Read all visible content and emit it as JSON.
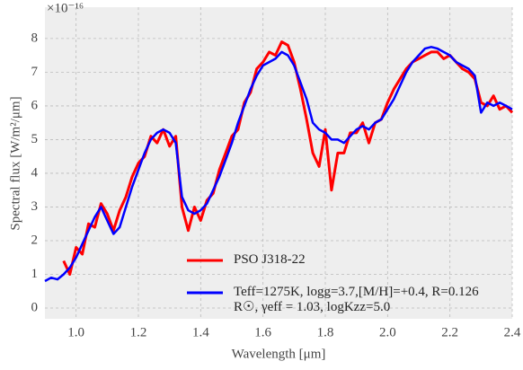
{
  "chart_data": {
    "type": "line",
    "x_label": "Wavelength [μm]",
    "y_label": "Spectral flux [W/m²/μm]",
    "y_offset_label": "×10⁻¹⁶",
    "x": [
      0.9,
      0.92,
      0.94,
      0.96,
      0.98,
      1.0,
      1.02,
      1.04,
      1.06,
      1.08,
      1.1,
      1.12,
      1.14,
      1.16,
      1.18,
      1.2,
      1.22,
      1.24,
      1.26,
      1.28,
      1.3,
      1.32,
      1.34,
      1.36,
      1.38,
      1.4,
      1.42,
      1.44,
      1.46,
      1.48,
      1.5,
      1.52,
      1.54,
      1.56,
      1.58,
      1.6,
      1.62,
      1.64,
      1.66,
      1.68,
      1.7,
      1.72,
      1.74,
      1.76,
      1.78,
      1.8,
      1.82,
      1.84,
      1.86,
      1.88,
      1.9,
      1.92,
      1.94,
      1.96,
      1.98,
      2.0,
      2.02,
      2.04,
      2.06,
      2.08,
      2.1,
      2.12,
      2.14,
      2.16,
      2.18,
      2.2,
      2.22,
      2.24,
      2.26,
      2.28,
      2.3,
      2.32,
      2.34,
      2.36,
      2.38,
      2.4
    ],
    "series": [
      {
        "name": "PSO J318-22",
        "color": "#ff0000",
        "width": 3,
        "values": [
          null,
          null,
          null,
          1.4,
          1.0,
          1.8,
          1.6,
          2.5,
          2.4,
          3.1,
          2.8,
          2.3,
          2.9,
          3.3,
          3.9,
          4.3,
          4.5,
          5.1,
          4.9,
          5.3,
          4.8,
          5.1,
          3.0,
          2.3,
          3.0,
          2.6,
          3.2,
          3.4,
          4.1,
          4.6,
          5.1,
          5.3,
          6.1,
          6.4,
          7.1,
          7.3,
          7.6,
          7.5,
          7.9,
          7.8,
          7.3,
          6.5,
          5.6,
          4.6,
          4.2,
          5.3,
          3.5,
          4.6,
          4.6,
          5.2,
          5.2,
          5.5,
          4.9,
          5.5,
          5.6,
          6.1,
          6.5,
          6.8,
          7.1,
          7.3,
          7.4,
          7.5,
          7.6,
          7.6,
          7.4,
          7.5,
          7.3,
          7.1,
          7.0,
          6.8,
          6.1,
          6.0,
          6.3,
          5.9,
          6.0,
          5.8
        ]
      },
      {
        "name": "Teff=1275K, logg=3.7,[M/H]=+0.4, R=0.126 R☉, γeff = 1.03, logKzz=5.0",
        "color": "#0000ff",
        "width": 2.5,
        "values": [
          0.8,
          0.9,
          0.85,
          1.0,
          1.2,
          1.5,
          1.9,
          2.3,
          2.7,
          3.0,
          2.6,
          2.2,
          2.4,
          3.0,
          3.6,
          4.1,
          4.6,
          5.0,
          5.2,
          5.3,
          5.2,
          4.9,
          3.3,
          2.9,
          2.8,
          2.9,
          3.1,
          3.5,
          3.9,
          4.4,
          4.9,
          5.5,
          6.0,
          6.5,
          6.9,
          7.2,
          7.3,
          7.4,
          7.6,
          7.5,
          7.2,
          6.7,
          6.2,
          5.5,
          5.3,
          5.2,
          5.0,
          5.0,
          4.9,
          5.1,
          5.3,
          5.4,
          5.3,
          5.5,
          5.6,
          5.9,
          6.2,
          6.6,
          7.0,
          7.3,
          7.5,
          7.7,
          7.75,
          7.7,
          7.6,
          7.5,
          7.3,
          7.2,
          7.1,
          6.9,
          5.8,
          6.1,
          6.0,
          6.1,
          6.0,
          5.9
        ]
      }
    ],
    "xlim": [
      0.9,
      2.4
    ],
    "ylim": [
      -0.32,
      8.93
    ],
    "xticks": [
      {
        "value": 1.0,
        "label": "1.0"
      },
      1.2,
      1.4,
      1.6,
      1.8,
      {
        "value": 2.0,
        "label": "2.0"
      },
      2.2,
      2.4
    ],
    "yticks": [
      0,
      1,
      2,
      3,
      4,
      5,
      6,
      7,
      8
    ],
    "grid": true,
    "legend": "lower right"
  }
}
